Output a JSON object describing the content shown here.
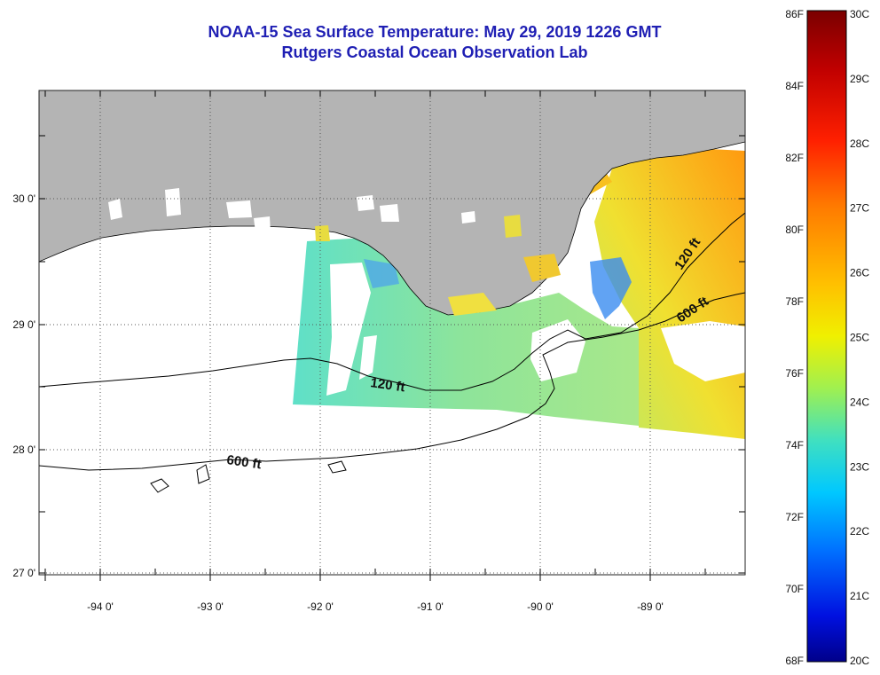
{
  "header": {
    "title": "NOAA-15 Sea Surface Temperature:  May 29, 2019 1226 GMT",
    "subtitle": "Rutgers Coastal Ocean Observation Lab"
  },
  "axes": {
    "lat_labels": [
      "30 0'",
      "29 0'",
      "28 0'",
      "27 0'"
    ],
    "lon_labels": [
      "-94 0'",
      "-93 0'",
      "-92 0'",
      "-91 0'",
      "-90 0'",
      "-89 0'"
    ]
  },
  "contours": {
    "label_120_west": "120 ft",
    "label_120_east": "120 ft",
    "label_600_west": "600 ft",
    "label_600_east": "600 ft"
  },
  "colorbar": {
    "fahrenheit": [
      "86F",
      "84F",
      "82F",
      "80F",
      "78F",
      "76F",
      "74F",
      "72F",
      "70F",
      "68F"
    ],
    "celsius": [
      "30C",
      "29C",
      "28C",
      "27C",
      "26C",
      "25C",
      "24C",
      "23C",
      "22C",
      "21C",
      "20C"
    ],
    "colors": [
      "#7a0000",
      "#c00000",
      "#ff2000",
      "#ff7a00",
      "#ffc000",
      "#f0f000",
      "#a0f050",
      "#40e0c0",
      "#00c8ff",
      "#0070ff",
      "#0010e0",
      "#00008a"
    ]
  },
  "style": {
    "land_color": "#b4b4b4",
    "title_color": "#1f1fb4"
  }
}
